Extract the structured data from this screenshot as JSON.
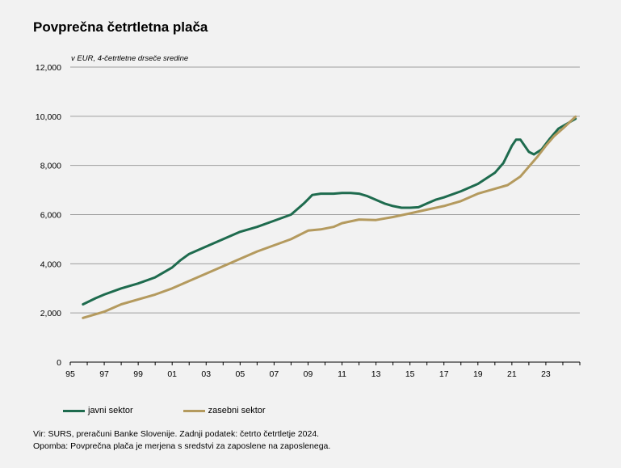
{
  "title": "Povprečna četrtletna plača",
  "unit_note": "v EUR, 4-četrtletne drseče sredine",
  "source": "Vir: SURS, preračuni Banke Slovenije. Zadnji podatek: četrto četrtletje  2024.",
  "note": "Opomba:  Povprečna plača je merjena  s sredstvi  za zaposlene  na zaposlenega.",
  "chart_data": {
    "type": "line",
    "title": "Povprečna četrtletna plača",
    "ylabel": "v EUR, 4-četrtletne drseče sredine",
    "xlabel": "",
    "xlim": [
      1995,
      2025
    ],
    "ylim": [
      0,
      12000
    ],
    "x_tick_labels": [
      "95",
      "97",
      "99",
      "01",
      "03",
      "05",
      "07",
      "09",
      "11",
      "13",
      "15",
      "17",
      "19",
      "21",
      "23"
    ],
    "x_tick_years": [
      1995,
      1997,
      1999,
      2001,
      2003,
      2005,
      2007,
      2009,
      2011,
      2013,
      2015,
      2017,
      2019,
      2021,
      2023
    ],
    "y_ticks": [
      0,
      2000,
      4000,
      6000,
      8000,
      10000,
      12000
    ],
    "y_tick_labels": [
      "0",
      "2,000",
      "4,000",
      "6,000",
      "8,000",
      "10,000",
      "12,000"
    ],
    "grid": "horizontal",
    "legend": "bottom",
    "series": [
      {
        "name": "javni sektor",
        "color": "#1e6b4e",
        "x": [
          1995.75,
          1996.5,
          1997,
          1998,
          1999,
          2000,
          2001,
          2001.5,
          2002,
          2003,
          2004,
          2005,
          2006,
          2007,
          2008,
          2008.75,
          2009.25,
          2009.75,
          2010.5,
          2011,
          2011.5,
          2012,
          2012.5,
          2013,
          2013.5,
          2014,
          2014.5,
          2015,
          2015.5,
          2016,
          2016.5,
          2017,
          2018,
          2019,
          2020,
          2020.5,
          2021,
          2021.25,
          2021.5,
          2022,
          2022.3,
          2022.75,
          2023.25,
          2023.75,
          2024.25,
          2024.75
        ],
        "y": [
          2350,
          2600,
          2750,
          3000,
          3200,
          3450,
          3850,
          4150,
          4400,
          4700,
          5000,
          5300,
          5500,
          5750,
          6000,
          6450,
          6800,
          6850,
          6850,
          6880,
          6880,
          6850,
          6750,
          6600,
          6450,
          6350,
          6280,
          6280,
          6300,
          6450,
          6600,
          6700,
          6950,
          7250,
          7700,
          8100,
          8800,
          9050,
          9050,
          8550,
          8450,
          8650,
          9100,
          9500,
          9700,
          9900
        ]
      },
      {
        "name": "zasebni sektor",
        "color": "#b49a5e",
        "x": [
          1995.75,
          1997,
          1998,
          1999,
          2000,
          2001,
          2002,
          2003,
          2004,
          2005,
          2006,
          2007,
          2008,
          2009,
          2009.75,
          2010.5,
          2011,
          2012,
          2013,
          2014,
          2015,
          2016,
          2017,
          2018,
          2019,
          2020,
          2020.75,
          2021.5,
          2022,
          2022.5,
          2023,
          2023.5,
          2024,
          2024.75
        ],
        "y": [
          1800,
          2050,
          2350,
          2550,
          2750,
          3000,
          3300,
          3600,
          3900,
          4200,
          4500,
          4750,
          5000,
          5350,
          5400,
          5500,
          5650,
          5800,
          5780,
          5900,
          6050,
          6200,
          6350,
          6550,
          6850,
          7050,
          7200,
          7550,
          7950,
          8350,
          8800,
          9200,
          9500,
          9980
        ]
      }
    ]
  }
}
